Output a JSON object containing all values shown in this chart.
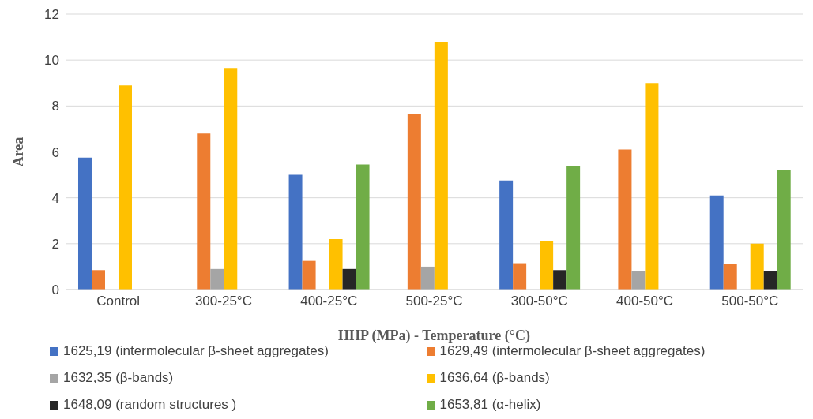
{
  "chart_data": {
    "type": "bar",
    "xlabel": "HHP (MPa) - Temperature (°C)",
    "ylabel": "Area",
    "categories": [
      "Control",
      "300-25°C",
      "400-25°C",
      "500-25°C",
      "300-50°C",
      "400-50°C",
      "500-50°C"
    ],
    "series": [
      {
        "name": "1625,19 (intermolecular β-sheet aggregates)",
        "color": "#4472c4",
        "values": [
          5.75,
          null,
          5.0,
          null,
          4.75,
          null,
          4.1
        ]
      },
      {
        "name": "1629,49 (intermolecular β-sheet aggregates)",
        "color": "#ed7d31",
        "values": [
          0.85,
          6.8,
          1.25,
          7.65,
          1.15,
          6.1,
          1.1
        ]
      },
      {
        "name": "1632,35 (β-bands)",
        "color": "#a5a5a5",
        "values": [
          null,
          0.9,
          null,
          1.0,
          null,
          0.8,
          null
        ]
      },
      {
        "name": "1636,64 (β-bands)",
        "color": "#ffc000",
        "values": [
          8.9,
          9.65,
          2.2,
          10.8,
          2.1,
          9.0,
          2.0
        ]
      },
      {
        "name": "1648,09 (random structures )",
        "color": "#262626",
        "values": [
          null,
          null,
          0.9,
          null,
          0.85,
          null,
          0.8
        ]
      },
      {
        "name": "1653,81 (α-helix)",
        "color": "#70ad47",
        "values": [
          null,
          null,
          5.45,
          null,
          5.4,
          null,
          5.2
        ]
      }
    ],
    "ylim": [
      0,
      12
    ],
    "yticks": [
      0,
      2,
      4,
      6,
      8,
      10,
      12
    ],
    "grid": "y",
    "legend": "bottom"
  }
}
